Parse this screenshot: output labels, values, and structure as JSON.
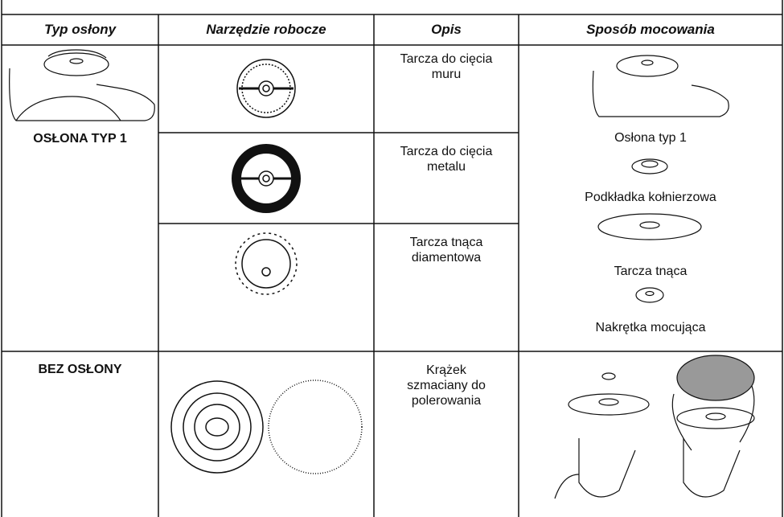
{
  "table": {
    "header": [
      "Typ osłony",
      "Narzędzie robocze",
      "Opis",
      "Sposób mocowania"
    ],
    "rows": [
      {
        "guard": "OSŁONA TYP 1",
        "tools": [
          {
            "description": "Tarcza do cięcia muru"
          },
          {
            "description": "Tarcza do cięcia metalu"
          },
          {
            "description": "Tarcza tnąca diamentowa"
          }
        ],
        "mounting": [
          "Osłona typ 1",
          "Podkładka kołnierzowa",
          "Tarcza tnąca",
          "Nakrętka mocująca"
        ]
      },
      {
        "guard": "BEZ OSŁONY",
        "tools": [
          {
            "description": "Krążek szmaciany do polerowania"
          }
        ]
      }
    ]
  }
}
